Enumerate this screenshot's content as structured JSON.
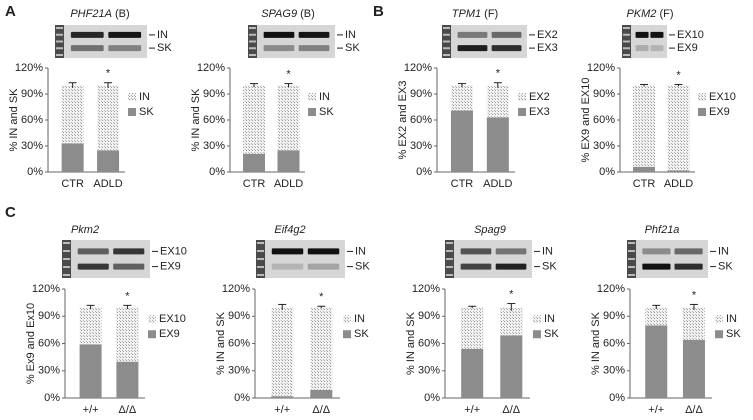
{
  "chart_data": [
    {
      "type": "bar",
      "stacked": true,
      "panel": "A",
      "title": "PHF21A",
      "title_suffix": "(B)",
      "gel_labels": [
        "IN",
        "SK"
      ],
      "ylabel": "% IN and SK",
      "categories": [
        "CTR",
        "ADLD"
      ],
      "series": [
        {
          "name": "SK",
          "color": "#8c8c8c",
          "values": [
            33,
            25
          ]
        },
        {
          "name": "IN",
          "color": "#d9d9d9",
          "values": [
            67,
            75
          ],
          "errors": [
            3,
            3
          ]
        }
      ],
      "ylim": [
        0,
        120
      ],
      "yticks": [
        {
          "value": 0,
          "label": "0%"
        },
        {
          "value": 30,
          "label": "30%"
        },
        {
          "value": 60,
          "label": "60%"
        },
        {
          "value": 90,
          "label": "90%"
        },
        {
          "value": 120,
          "label": "120%"
        }
      ],
      "annotation": "*"
    },
    {
      "type": "bar",
      "stacked": true,
      "title": "SPAG9",
      "title_suffix": "(B)",
      "gel_labels": [
        "IN",
        "SK"
      ],
      "ylabel": "% IN and SK",
      "categories": [
        "CTR",
        "ADLD"
      ],
      "series": [
        {
          "name": "SK",
          "color": "#8c8c8c",
          "values": [
            21,
            25
          ]
        },
        {
          "name": "IN",
          "color": "#d9d9d9",
          "values": [
            79,
            75
          ],
          "errors": [
            2,
            2
          ]
        }
      ],
      "ylim": [
        0,
        120
      ],
      "yticks": [
        {
          "value": 0,
          "label": "0%"
        },
        {
          "value": 30,
          "label": "30%"
        },
        {
          "value": 60,
          "label": "60%"
        },
        {
          "value": 90,
          "label": "90%"
        },
        {
          "value": 120,
          "label": "120%"
        }
      ],
      "annotation": "*"
    },
    {
      "type": "bar",
      "stacked": true,
      "panel": "B",
      "title": "TPM1",
      "title_suffix": "(F)",
      "gel_labels": [
        "EX2",
        "EX3"
      ],
      "ylabel": "% EX2 and EX3",
      "categories": [
        "CTR",
        "ADLD"
      ],
      "series": [
        {
          "name": "EX3",
          "color": "#8c8c8c",
          "values": [
            71,
            63
          ]
        },
        {
          "name": "EX2",
          "color": "#d9d9d9",
          "values": [
            29,
            37
          ],
          "errors": [
            2,
            3
          ]
        }
      ],
      "ylim": [
        0,
        120
      ],
      "yticks": [
        {
          "value": 0,
          "label": "0%"
        },
        {
          "value": 30,
          "label": "30%"
        },
        {
          "value": 60,
          "label": "60%"
        },
        {
          "value": 90,
          "label": "90%"
        },
        {
          "value": 120,
          "label": "120%"
        }
      ],
      "annotation": "*"
    },
    {
      "type": "bar",
      "stacked": true,
      "title": "PKM2",
      "title_suffix": "(F)",
      "gel_labels": [
        "EX10",
        "EX9"
      ],
      "ylabel": "% EX9 and EX10",
      "categories": [
        "CTR",
        "ADLD"
      ],
      "series": [
        {
          "name": "EX9",
          "color": "#8c8c8c",
          "values": [
            6,
            2
          ]
        },
        {
          "name": "EX10",
          "color": "#d9d9d9",
          "values": [
            94,
            98
          ],
          "errors": [
            1,
            1
          ]
        }
      ],
      "ylim": [
        0,
        120
      ],
      "yticks": [
        {
          "value": 0,
          "label": "0%"
        },
        {
          "value": 30,
          "label": "30%"
        },
        {
          "value": 60,
          "label": "60%"
        },
        {
          "value": 90,
          "label": "90%"
        },
        {
          "value": 120,
          "label": "120%"
        }
      ],
      "annotation": "*"
    },
    {
      "type": "bar",
      "stacked": true,
      "panel": "C",
      "title": "Pkm2",
      "gel_labels": [
        "EX10",
        "EX9"
      ],
      "ylabel": "% Ex9 and Ex10",
      "categories": [
        "+/+",
        "Δ/Δ"
      ],
      "series": [
        {
          "name": "EX9",
          "color": "#8c8c8c",
          "values": [
            59,
            40
          ]
        },
        {
          "name": "EX10",
          "color": "#d9d9d9",
          "values": [
            41,
            60
          ],
          "errors": [
            2,
            2
          ]
        }
      ],
      "ylim": [
        0,
        120
      ],
      "yticks": [
        {
          "value": 0,
          "label": "0%"
        },
        {
          "value": 30,
          "label": "30%"
        },
        {
          "value": 60,
          "label": "60%"
        },
        {
          "value": 90,
          "label": "90%"
        },
        {
          "value": 120,
          "label": "120%"
        }
      ],
      "annotation": "*"
    },
    {
      "type": "bar",
      "stacked": true,
      "title": "Eif4g2",
      "gel_labels": [
        "IN",
        "SK"
      ],
      "ylabel": "% IN and SK",
      "categories": [
        "+/+",
        "Δ/Δ"
      ],
      "series": [
        {
          "name": "SK",
          "color": "#8c8c8c",
          "values": [
            2,
            9
          ]
        },
        {
          "name": "IN",
          "color": "#d9d9d9",
          "values": [
            98,
            91
          ],
          "errors": [
            3,
            1
          ]
        }
      ],
      "ylim": [
        0,
        120
      ],
      "yticks": [
        {
          "value": 0,
          "label": "0%"
        },
        {
          "value": 30,
          "label": "30%"
        },
        {
          "value": 60,
          "label": "60%"
        },
        {
          "value": 90,
          "label": "90%"
        },
        {
          "value": 120,
          "label": "120%"
        }
      ],
      "annotation": "*"
    },
    {
      "type": "bar",
      "stacked": true,
      "title": "Spag9",
      "gel_labels": [
        "IN",
        "SK"
      ],
      "ylabel": "% IN and SK",
      "categories": [
        "+/+",
        "Δ/Δ"
      ],
      "series": [
        {
          "name": "SK",
          "color": "#8c8c8c",
          "values": [
            54,
            69
          ]
        },
        {
          "name": "IN",
          "color": "#d9d9d9",
          "values": [
            46,
            31
          ],
          "errors": [
            1,
            4
          ]
        }
      ],
      "ylim": [
        0,
        120
      ],
      "yticks": [
        {
          "value": 0,
          "label": "0%"
        },
        {
          "value": 30,
          "label": "30%"
        },
        {
          "value": 60,
          "label": "60%"
        },
        {
          "value": 90,
          "label": "90%"
        },
        {
          "value": 120,
          "label": "120%"
        }
      ],
      "annotation": "*"
    },
    {
      "type": "bar",
      "stacked": true,
      "title": "Phf21a",
      "gel_labels": [
        "IN",
        "SK"
      ],
      "ylabel": "% IN and SK",
      "categories": [
        "+/+",
        "Δ/Δ"
      ],
      "series": [
        {
          "name": "SK",
          "color": "#8c8c8c",
          "values": [
            80,
            64
          ]
        },
        {
          "name": "IN",
          "color": "#d9d9d9",
          "values": [
            20,
            36
          ],
          "errors": [
            2,
            3
          ]
        }
      ],
      "ylim": [
        0,
        120
      ],
      "yticks": [
        {
          "value": 0,
          "label": "0%"
        },
        {
          "value": 30,
          "label": "30%"
        },
        {
          "value": 60,
          "label": "60%"
        },
        {
          "value": 90,
          "label": "90%"
        },
        {
          "value": 120,
          "label": "120%"
        }
      ],
      "annotation": "*"
    }
  ]
}
